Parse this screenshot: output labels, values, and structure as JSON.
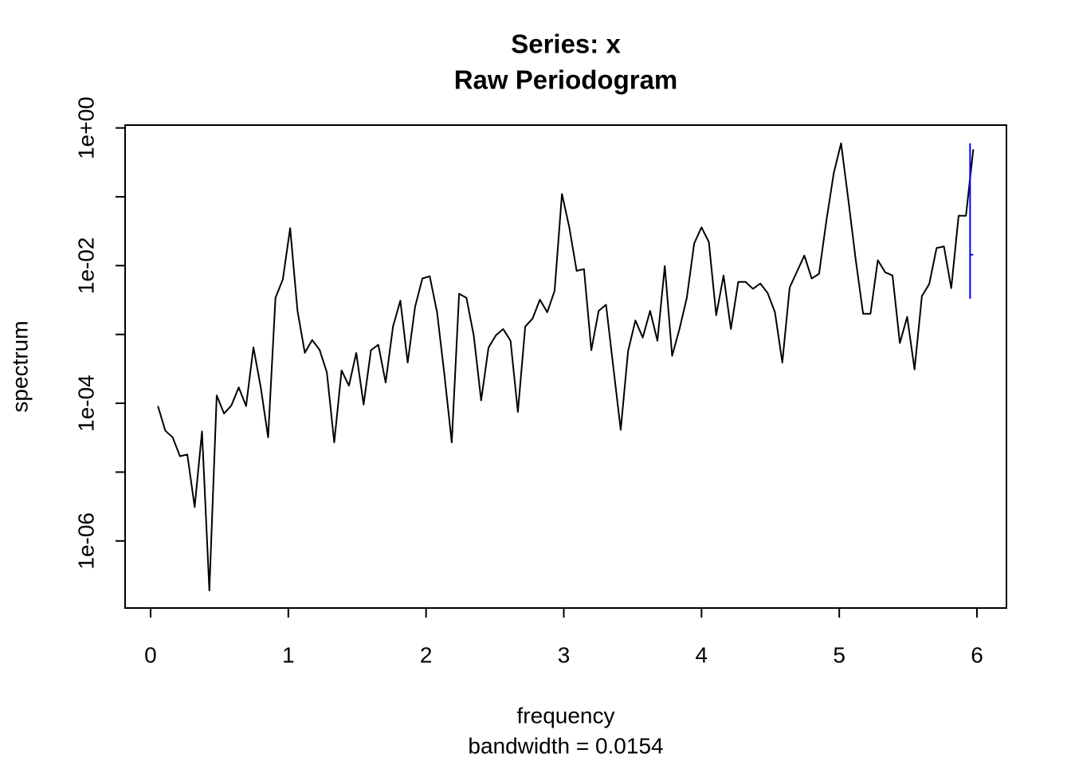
{
  "chart_data": {
    "type": "line",
    "log_y": true,
    "title": "Series: x",
    "subtitle": "Raw Periodogram",
    "x_label": "frequency",
    "x_sublabel": "bandwidth = 0.0154",
    "y_label": "spectrum",
    "xlim": [
      -0.185,
      6.214
    ],
    "ylim": [
      1.06e-07,
      1.1
    ],
    "xticks": [
      0,
      1,
      2,
      3,
      4,
      5,
      6
    ],
    "yticks": [
      {
        "value": 1,
        "label": "1e+00"
      },
      {
        "value": 0.1,
        "label": null
      },
      {
        "value": 0.01,
        "label": "1e-02"
      },
      {
        "value": 0.001,
        "label": null
      },
      {
        "value": 0.0001,
        "label": "1e-04"
      },
      {
        "value": 1e-05,
        "label": null
      },
      {
        "value": 1e-06,
        "label": "1e-06"
      }
    ],
    "x": [
      0.0533,
      0.1067,
      0.16,
      0.2133,
      0.2667,
      0.32,
      0.3733,
      0.4267,
      0.48,
      0.5333,
      0.5867,
      0.64,
      0.6933,
      0.7467,
      0.8,
      0.8533,
      0.9067,
      0.96,
      1.0133,
      1.0667,
      1.12,
      1.1733,
      1.2267,
      1.28,
      1.3333,
      1.3867,
      1.44,
      1.4933,
      1.5467,
      1.6,
      1.6533,
      1.7067,
      1.76,
      1.8133,
      1.8667,
      1.92,
      1.9733,
      2.0267,
      2.08,
      2.1333,
      2.1867,
      2.24,
      2.2933,
      2.3467,
      2.4,
      2.4533,
      2.5067,
      2.56,
      2.6133,
      2.6667,
      2.72,
      2.7733,
      2.8267,
      2.88,
      2.9333,
      2.9867,
      3.04,
      3.0933,
      3.1467,
      3.2,
      3.2533,
      3.3067,
      3.36,
      3.4133,
      3.4667,
      3.52,
      3.5733,
      3.6267,
      3.68,
      3.7333,
      3.7867,
      3.84,
      3.8933,
      3.9467,
      4,
      4.0533,
      4.1067,
      4.16,
      4.2133,
      4.2667,
      4.32,
      4.3733,
      4.4267,
      4.48,
      4.5333,
      4.5867,
      4.64,
      4.6933,
      4.7467,
      4.8,
      4.8533,
      4.9067,
      4.96,
      5.0133,
      5.0667,
      5.12,
      5.1733,
      5.2267,
      5.28,
      5.3333,
      5.3867,
      5.44,
      5.4933,
      5.5467,
      5.6,
      5.6533,
      5.7067,
      5.76,
      5.8133,
      5.8667,
      5.92,
      5.9733
    ],
    "series": [
      {
        "color": "#000000",
        "values": [
          9.1e-05,
          4e-05,
          3.2e-05,
          1.7e-05,
          1.8e-05,
          3.1e-06,
          3.9e-05,
          1.9e-07,
          0.00013,
          7.1e-05,
          9.3e-05,
          0.00017,
          9.1e-05,
          0.00065,
          0.00017,
          3.2e-05,
          0.0034,
          0.0063,
          0.035,
          0.0022,
          0.00054,
          0.00083,
          0.0006,
          0.00028,
          2.7e-05,
          0.0003,
          0.00018,
          0.00054,
          9.6e-05,
          0.00059,
          0.00071,
          0.0002,
          0.0013,
          0.0031,
          0.00039,
          0.0025,
          0.0065,
          0.007,
          0.0021,
          0.00026,
          2.7e-05,
          0.0039,
          0.0034,
          0.00095,
          0.00011,
          0.00064,
          0.00097,
          0.0012,
          0.00081,
          7.5e-05,
          0.0013,
          0.0017,
          0.0032,
          0.0021,
          0.0043,
          0.11,
          0.036,
          0.0084,
          0.0089,
          0.00059,
          0.0022,
          0.0027,
          0.00033,
          4.1e-05,
          0.00057,
          0.0016,
          0.0009,
          0.0022,
          0.00081,
          0.0099,
          0.00049,
          0.0012,
          0.0034,
          0.021,
          0.036,
          0.022,
          0.0019,
          0.0072,
          0.0012,
          0.0058,
          0.0058,
          0.0046,
          0.0055,
          0.004,
          0.0021,
          0.00039,
          0.0048,
          0.0082,
          0.014,
          0.0065,
          0.0076,
          0.045,
          0.22,
          0.6,
          0.088,
          0.012,
          0.002,
          0.002,
          0.012,
          0.008,
          0.0072,
          0.00075,
          0.0018,
          0.00031,
          0.0036,
          0.0054,
          0.018,
          0.019,
          0.0047,
          0.053,
          0.053,
          0.49
        ]
      }
    ],
    "ci_bar": {
      "x": 5.95,
      "lower": 0.0033,
      "upper": 0.6,
      "center": 0.0144,
      "color": "#0000ff"
    }
  }
}
